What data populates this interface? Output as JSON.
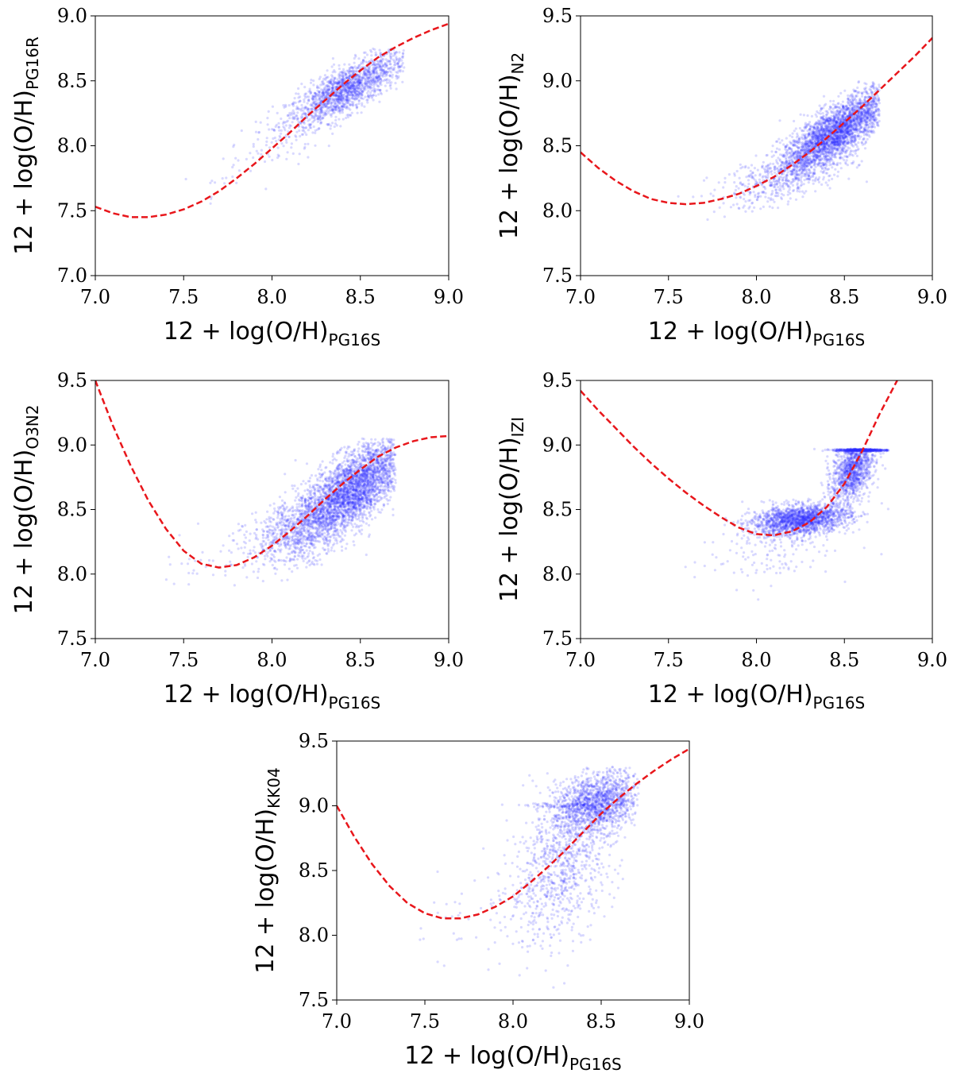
{
  "chart_data": [
    {
      "type": "scatter",
      "id": "pg16r",
      "xlabel_main": "12 + log(O/H)",
      "xlabel_sub": "PG16S",
      "ylabel_main": "12 + log(O/H)",
      "ylabel_sub": "PG16R",
      "xlim": [
        7.0,
        9.0
      ],
      "ylim": [
        7.0,
        9.0
      ],
      "xticks": [
        "7.0",
        "7.5",
        "8.0",
        "8.5",
        "9.0"
      ],
      "yticks": [
        "7.0",
        "7.5",
        "8.0",
        "8.5",
        "9.0"
      ],
      "point_color": "#2b2bff",
      "fit_color": "#e8161b",
      "fit_curve": {
        "x": [
          7.0,
          7.1,
          7.2,
          7.3,
          7.4,
          7.5,
          7.6,
          7.7,
          7.8,
          7.9,
          8.0,
          8.1,
          8.2,
          8.3,
          8.4,
          8.5,
          8.6,
          8.7,
          8.8,
          8.9,
          9.0
        ],
        "y": [
          7.53,
          7.48,
          7.45,
          7.45,
          7.47,
          7.51,
          7.57,
          7.65,
          7.75,
          7.86,
          7.98,
          8.1,
          8.23,
          8.35,
          8.47,
          8.58,
          8.68,
          8.76,
          8.83,
          8.89,
          8.94
        ]
      },
      "point_clusters": [
        {
          "cx": 8.42,
          "cy": 8.43,
          "sx": 0.17,
          "sy": 0.15,
          "rho": 0.8,
          "n": 1700
        },
        {
          "cx": 7.9,
          "cy": 7.9,
          "sx": 0.22,
          "sy": 0.18,
          "rho": 0.8,
          "n": 60
        }
      ],
      "x_range": [
        7.5,
        8.75
      ],
      "y_range": [
        7.55,
        8.75
      ]
    },
    {
      "type": "scatter",
      "id": "n2",
      "xlabel_main": "12 + log(O/H)",
      "xlabel_sub": "PG16S",
      "ylabel_main": "12 + log(O/H)",
      "ylabel_sub": "N2",
      "xlim": [
        7.0,
        9.0
      ],
      "ylim": [
        7.5,
        9.5
      ],
      "xticks": [
        "7.0",
        "7.5",
        "8.0",
        "8.5",
        "9.0"
      ],
      "yticks": [
        "7.5",
        "8.0",
        "8.5",
        "9.0",
        "9.5"
      ],
      "point_color": "#2b2bff",
      "fit_color": "#e8161b",
      "fit_curve": {
        "x": [
          7.0,
          7.1,
          7.2,
          7.3,
          7.4,
          7.5,
          7.6,
          7.7,
          7.8,
          7.9,
          8.0,
          8.1,
          8.2,
          8.3,
          8.4,
          8.5,
          8.6,
          8.7,
          8.8,
          8.9,
          9.0
        ],
        "y": [
          8.45,
          8.33,
          8.23,
          8.15,
          8.09,
          8.06,
          8.05,
          8.06,
          8.09,
          8.13,
          8.19,
          8.26,
          8.35,
          8.45,
          8.56,
          8.68,
          8.8,
          8.93,
          9.06,
          9.19,
          9.33
        ]
      },
      "point_clusters": [
        {
          "cx": 8.45,
          "cy": 8.6,
          "sx": 0.16,
          "sy": 0.17,
          "rho": 0.8,
          "n": 3000
        },
        {
          "cx": 8.15,
          "cy": 8.25,
          "sx": 0.2,
          "sy": 0.12,
          "rho": 0.6,
          "n": 400
        }
      ],
      "x_range": [
        7.5,
        8.7
      ],
      "y_range": [
        7.75,
        9.0
      ]
    },
    {
      "type": "scatter",
      "id": "o3n2",
      "xlabel_main": "12 + log(O/H)",
      "xlabel_sub": "PG16S",
      "ylabel_main": "12 + log(O/H)",
      "ylabel_sub": "O3N2",
      "xlim": [
        7.0,
        9.0
      ],
      "ylim": [
        7.5,
        9.5
      ],
      "xticks": [
        "7.0",
        "7.5",
        "8.0",
        "8.5",
        "9.0"
      ],
      "yticks": [
        "7.5",
        "8.0",
        "8.5",
        "9.0",
        "9.5"
      ],
      "point_color": "#2b2bff",
      "fit_color": "#e8161b",
      "fit_curve": {
        "x": [
          7.0,
          7.1,
          7.2,
          7.3,
          7.4,
          7.5,
          7.6,
          7.7,
          7.8,
          7.9,
          8.0,
          8.1,
          8.2,
          8.3,
          8.4,
          8.5,
          8.6,
          8.7,
          8.8,
          8.9,
          9.0
        ],
        "y": [
          9.5,
          9.15,
          8.84,
          8.57,
          8.35,
          8.18,
          8.08,
          8.05,
          8.07,
          8.13,
          8.22,
          8.33,
          8.45,
          8.58,
          8.7,
          8.81,
          8.91,
          8.98,
          9.03,
          9.06,
          9.07
        ]
      },
      "point_clusters": [
        {
          "cx": 8.45,
          "cy": 8.65,
          "sx": 0.16,
          "sy": 0.2,
          "rho": 0.7,
          "n": 3200
        },
        {
          "cx": 8.15,
          "cy": 8.35,
          "sx": 0.15,
          "sy": 0.15,
          "rho": 0.5,
          "n": 700
        },
        {
          "cx": 7.75,
          "cy": 8.15,
          "sx": 0.2,
          "sy": 0.12,
          "rho": 0.3,
          "n": 50
        }
      ],
      "x_range": [
        7.35,
        8.7
      ],
      "y_range": [
        7.85,
        9.05
      ]
    },
    {
      "type": "scatter",
      "id": "izi",
      "xlabel_main": "12 + log(O/H)",
      "xlabel_sub": "PG16S",
      "ylabel_main": "12 + log(O/H)",
      "ylabel_sub": "IZI",
      "xlim": [
        7.0,
        9.0
      ],
      "ylim": [
        7.5,
        9.5
      ],
      "xticks": [
        "7.0",
        "7.5",
        "8.0",
        "8.5",
        "9.0"
      ],
      "yticks": [
        "7.5",
        "8.0",
        "8.5",
        "9.0",
        "9.5"
      ],
      "point_color": "#2b2bff",
      "fit_color": "#e8161b",
      "fit_curve": {
        "x": [
          7.0,
          7.1,
          7.2,
          7.3,
          7.4,
          7.5,
          7.6,
          7.7,
          7.8,
          7.9,
          8.0,
          8.1,
          8.2,
          8.3,
          8.4,
          8.5,
          8.6,
          8.7,
          8.8
        ],
        "y": [
          9.42,
          9.27,
          9.13,
          8.99,
          8.86,
          8.74,
          8.63,
          8.53,
          8.44,
          8.36,
          8.31,
          8.3,
          8.33,
          8.4,
          8.52,
          8.7,
          8.95,
          9.24,
          9.5
        ]
      },
      "point_clusters": [
        {
          "cx": 8.25,
          "cy": 8.42,
          "sx": 0.14,
          "sy": 0.06,
          "rho": 0.3,
          "n": 1800
        },
        {
          "cx": 8.55,
          "cy": 8.82,
          "sx": 0.06,
          "sy": 0.13,
          "rho": 0.4,
          "n": 1200
        },
        {
          "cx": 8.6,
          "cy": 8.96,
          "sx": 0.08,
          "sy": 0.004,
          "rho": 0.0,
          "n": 500
        },
        {
          "cx": 8.05,
          "cy": 8.15,
          "sx": 0.2,
          "sy": 0.12,
          "rho": 0.3,
          "n": 120
        }
      ],
      "x_range": [
        7.25,
        8.75
      ],
      "y_range": [
        7.7,
        8.97
      ]
    },
    {
      "type": "scatter",
      "id": "kk04",
      "xlabel_main": "12 + log(O/H)",
      "xlabel_sub": "PG16S",
      "ylabel_main": "12 + log(O/H)",
      "ylabel_sub": "KK04",
      "xlim": [
        7.0,
        9.0
      ],
      "ylim": [
        7.5,
        9.5
      ],
      "xticks": [
        "7.0",
        "7.5",
        "8.0",
        "8.5",
        "9.0"
      ],
      "yticks": [
        "7.5",
        "8.0",
        "8.5",
        "9.0",
        "9.5"
      ],
      "point_color": "#2b2bff",
      "fit_color": "#e8161b",
      "fit_curve": {
        "x": [
          7.0,
          7.1,
          7.2,
          7.3,
          7.4,
          7.5,
          7.6,
          7.7,
          7.8,
          7.9,
          8.0,
          8.1,
          8.2,
          8.3,
          8.4,
          8.5,
          8.6,
          8.7,
          8.8,
          8.9,
          9.0
        ],
        "y": [
          9.0,
          8.76,
          8.55,
          8.38,
          8.25,
          8.17,
          8.13,
          8.13,
          8.16,
          8.22,
          8.3,
          8.41,
          8.53,
          8.66,
          8.8,
          8.94,
          9.06,
          9.17,
          9.27,
          9.36,
          9.44
        ]
      },
      "point_clusters": [
        {
          "cx": 8.48,
          "cy": 9.02,
          "sx": 0.12,
          "sy": 0.12,
          "rho": 0.3,
          "n": 1400
        },
        {
          "cx": 8.28,
          "cy": 8.55,
          "sx": 0.15,
          "sy": 0.3,
          "rho": 0.4,
          "n": 900
        },
        {
          "cx": 8.3,
          "cy": 9.0,
          "sx": 0.12,
          "sy": 0.01,
          "rho": 0.0,
          "n": 80
        },
        {
          "cx": 7.85,
          "cy": 8.2,
          "sx": 0.25,
          "sy": 0.2,
          "rho": 0.3,
          "n": 60
        }
      ],
      "x_range": [
        7.45,
        8.72
      ],
      "y_range": [
        7.55,
        9.3
      ]
    }
  ]
}
